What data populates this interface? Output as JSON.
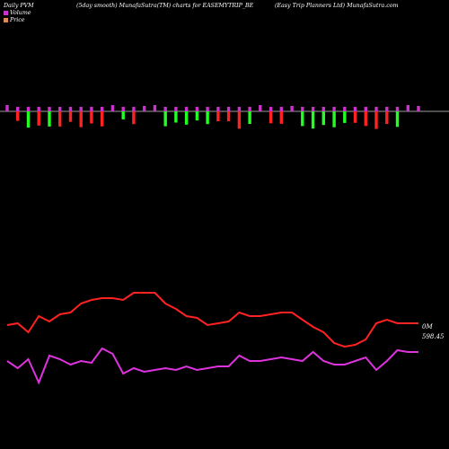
{
  "header": {
    "left": "Daily PVM",
    "center": "(5day smooth) MunafaSutra(TM) charts for EASEMYTRIP_BE",
    "right": "(Easy Trip Planners Ltd) MunafaSutra.com"
  },
  "legend": [
    {
      "label": "Volume",
      "color": "#cc33cc"
    },
    {
      "label": "Price",
      "color": "#e08a5a"
    }
  ],
  "colors": {
    "up": "#22ff22",
    "down": "#ff2222",
    "neutral": "#cc33cc",
    "price": "#ff2222",
    "volume": "#dd33dd",
    "baseline": "#9a9a9a"
  },
  "chart_data": {
    "type": "bar",
    "series": [
      {
        "name": "Volume",
        "values": [
          59,
          55,
          60,
          47,
          62,
          60,
          57,
          59,
          58,
          66,
          63,
          52,
          55,
          53,
          54,
          55,
          54,
          56,
          54,
          55,
          56,
          56,
          62,
          59,
          59,
          60,
          61,
          60,
          59,
          64,
          59,
          57,
          57,
          59,
          61,
          54,
          59,
          65,
          64,
          64
        ]
      },
      {
        "name": "Price",
        "values": [
          79,
          80,
          75,
          84,
          81,
          85,
          86,
          91,
          93,
          94,
          94,
          93,
          97,
          97,
          97,
          91,
          88,
          84,
          83,
          79,
          80,
          81,
          86,
          84,
          84,
          85,
          86,
          86,
          82,
          78,
          75,
          69,
          67,
          68,
          71,
          80,
          82,
          80,
          80,
          80
        ]
      }
    ],
    "price_label": "598.45",
    "volume_label": "0M"
  }
}
